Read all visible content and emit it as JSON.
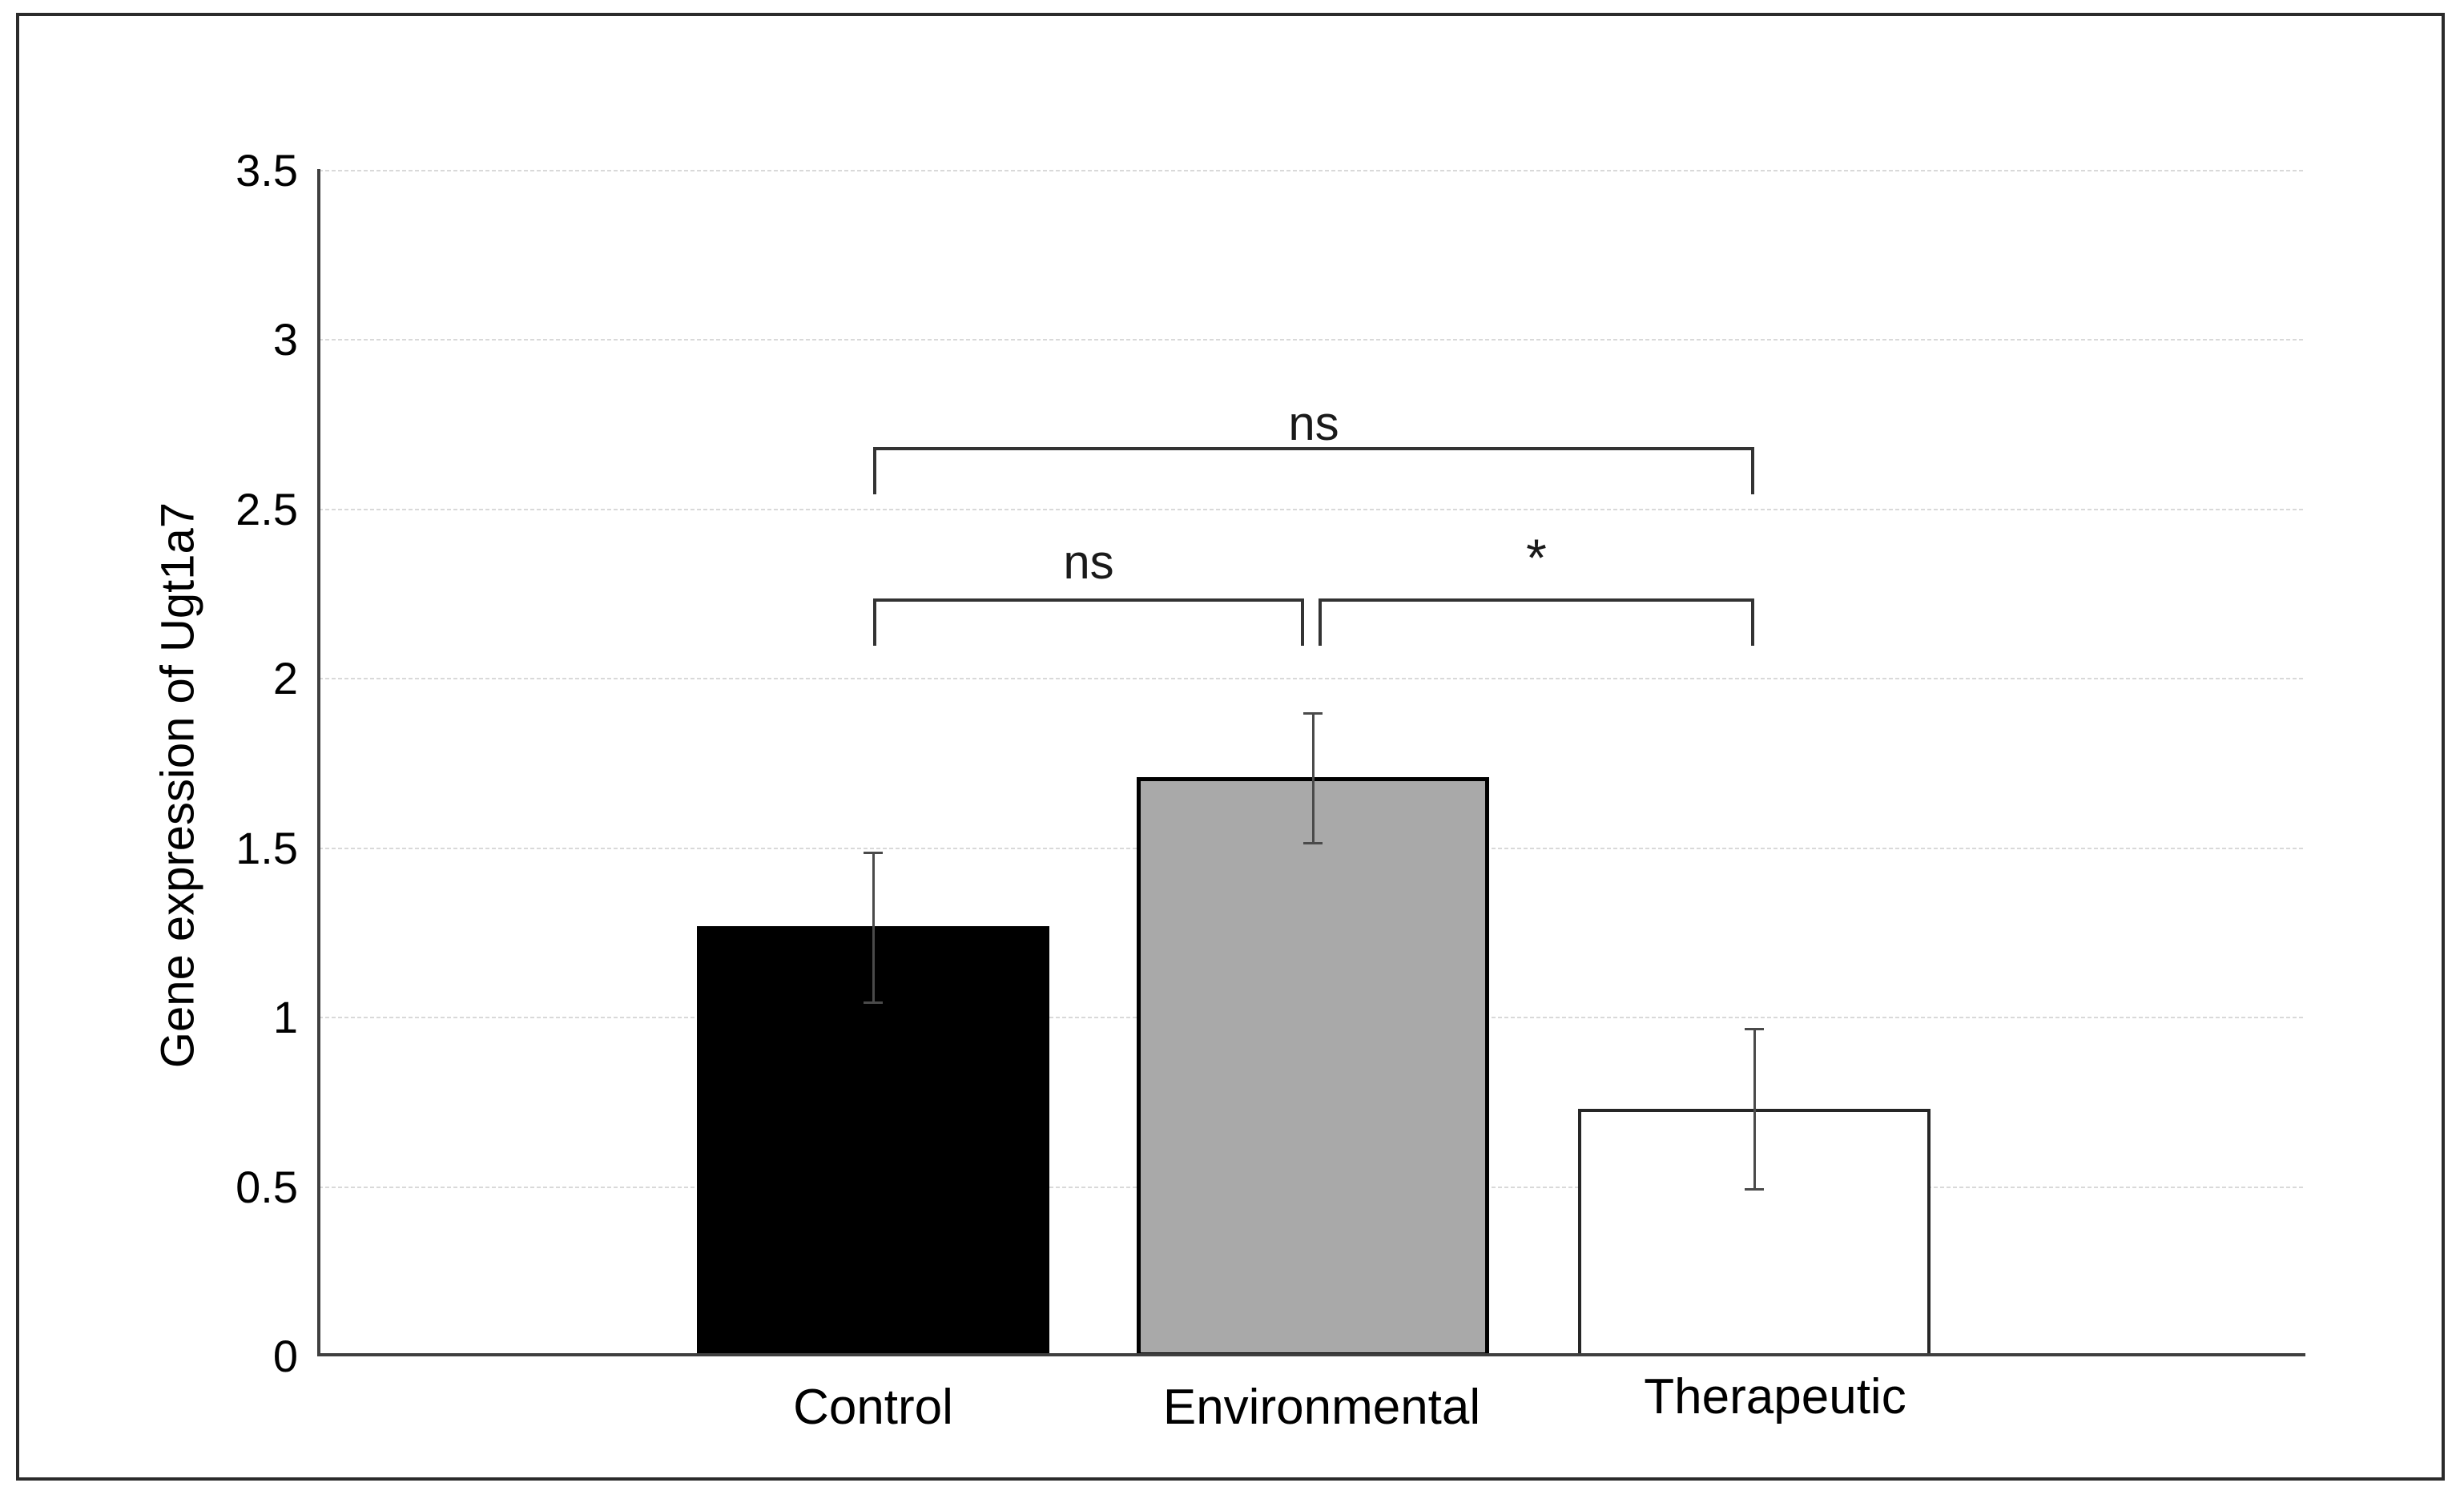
{
  "figure": {
    "description": "Bar chart of gene expression of Ugt1a7 across three treatment groups with error bars and significance brackets"
  },
  "chart_data": {
    "type": "bar",
    "title": "",
    "xlabel": "",
    "ylabel": "Gene expression of Ugt1a7",
    "categories": [
      "Control",
      "Environmental",
      "Therapeutic"
    ],
    "values": [
      1.27,
      1.71,
      0.73
    ],
    "error_bars": [
      {
        "low": 1.04,
        "high": 1.49
      },
      {
        "low": 1.51,
        "high": 1.9
      },
      {
        "low": 0.49,
        "high": 0.97
      }
    ],
    "bar_styles": [
      {
        "fill": "#000000",
        "border_color": "#000000",
        "border_width": 0
      },
      {
        "fill": "#a9a9a9",
        "border_color": "#000000",
        "border_width": 5
      },
      {
        "fill": "#ffffff",
        "border_color": "#262626",
        "border_width": 4
      }
    ],
    "ylim": [
      0,
      3.5
    ],
    "yticks": [
      0,
      0.5,
      1,
      1.5,
      2,
      2.5,
      3,
      3.5
    ],
    "ytick_labels": [
      "0",
      "0.5",
      "1",
      "1.5",
      "2",
      "2.5",
      "3",
      "3.5"
    ],
    "grid": "horizontal-dashed",
    "legend": "none",
    "significance": [
      {
        "between": [
          0,
          2
        ],
        "label": "ns",
        "row": "top"
      },
      {
        "between": [
          0,
          1
        ],
        "label": "ns",
        "row": "bottom"
      },
      {
        "between": [
          1,
          2
        ],
        "label": "*",
        "row": "bottom"
      }
    ],
    "colors": {
      "grid": "#d9d9d9",
      "axis": "#3f3f3f",
      "error_bar": "#4a4a4a",
      "bracket": "#333333",
      "frame_border": "#2b2b2b",
      "background": "#ffffff"
    }
  }
}
